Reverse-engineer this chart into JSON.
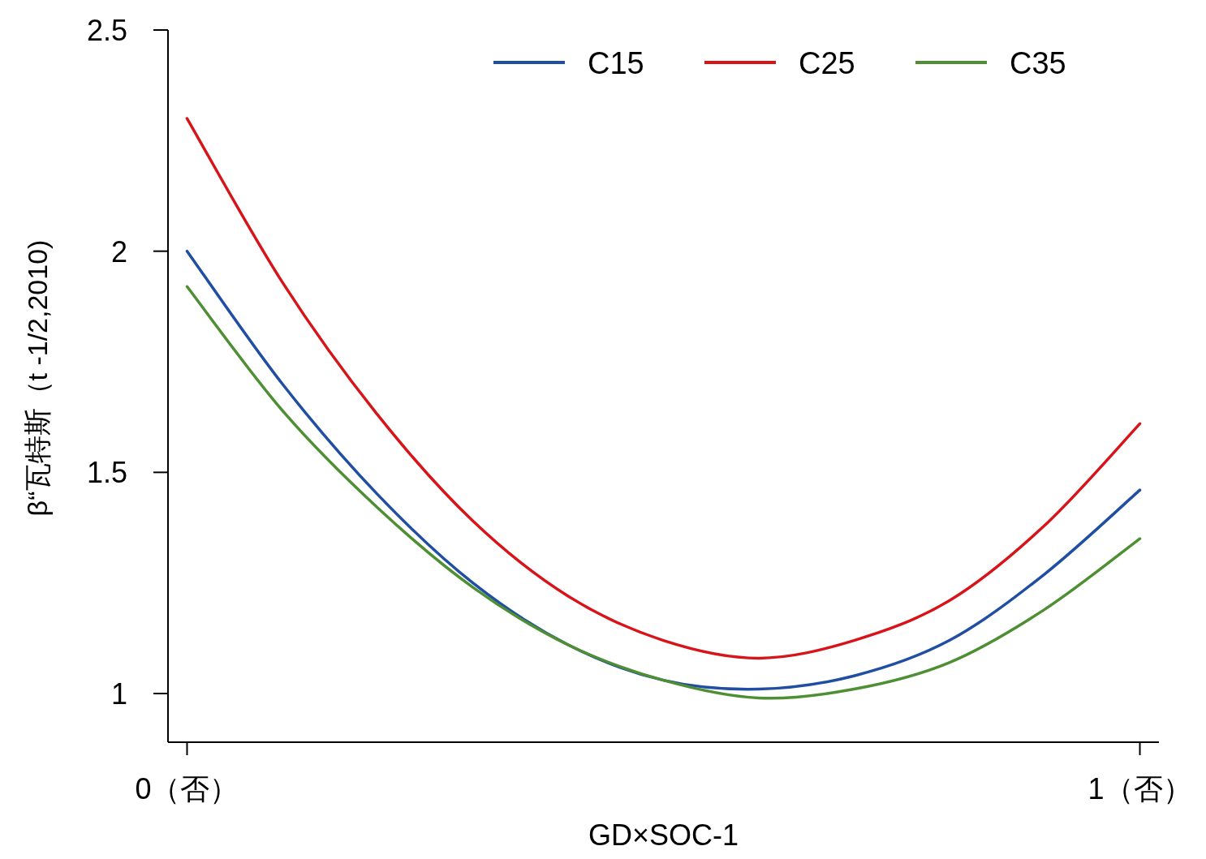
{
  "chart_data": {
    "type": "line",
    "xlabel": "GD×SOC-1",
    "ylabel": "β“瓦特斯（t -1/2,2010)",
    "x": [
      0,
      0.1,
      0.2,
      0.3,
      0.4,
      0.5,
      0.6,
      0.7,
      0.8,
      0.9,
      1
    ],
    "series": [
      {
        "name": "C15",
        "color": "#1f4ea3",
        "values": [
          2.0,
          1.7,
          1.45,
          1.25,
          1.11,
          1.03,
          1.01,
          1.04,
          1.12,
          1.27,
          1.46
        ]
      },
      {
        "name": "C25",
        "color": "#d7141a",
        "values": [
          2.3,
          1.93,
          1.63,
          1.39,
          1.22,
          1.12,
          1.08,
          1.12,
          1.21,
          1.38,
          1.61
        ]
      },
      {
        "name": "C35",
        "color": "#4e8f34",
        "values": [
          1.92,
          1.64,
          1.42,
          1.24,
          1.11,
          1.03,
          0.99,
          1.01,
          1.07,
          1.19,
          1.35
        ]
      }
    ],
    "xlim": [
      -0.02,
      1.02
    ],
    "xticks": [
      {
        "value": 0,
        "label": "0（否）"
      },
      {
        "value": 1,
        "label": "1（否）"
      }
    ],
    "ylim": [
      0.89,
      2.5
    ],
    "yticks": [
      1,
      1.5,
      2,
      2.5
    ],
    "grid": false,
    "legend": "top right",
    "marker": "none",
    "line_style": "solid"
  }
}
